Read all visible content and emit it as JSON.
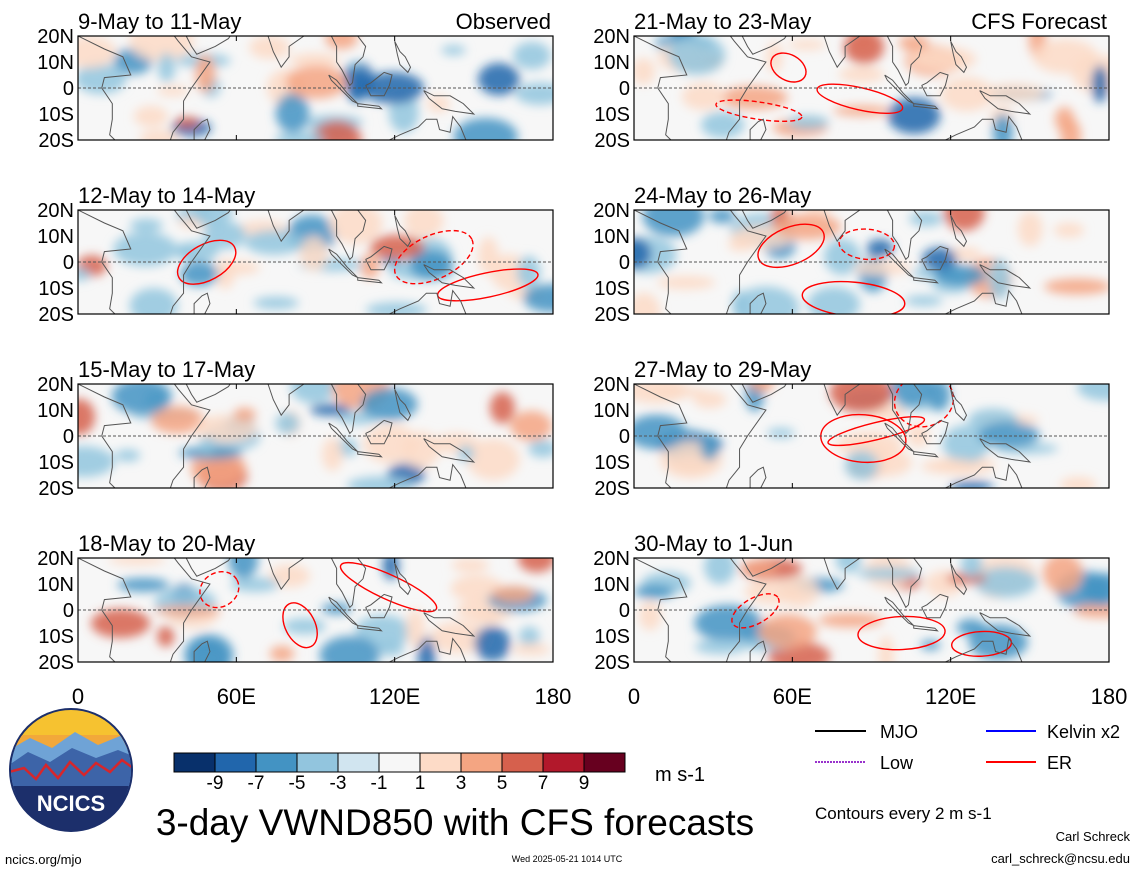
{
  "figure": {
    "title": "3-day VWND850 with CFS forecasts",
    "observed_label": "Observed",
    "forecast_label": "CFS Forecast",
    "units": "m s-1",
    "contour_note": "Contours every 2 m s-1",
    "site": "ncics.org/mjo",
    "timestamp": "Wed 2025-05-21 1014 UTC",
    "author": "Carl Schreck",
    "email": "carl_schreck@ncsu.edu",
    "logo_text": "NCICS"
  },
  "colorbar": {
    "ticks": [
      "-9",
      "-7",
      "-5",
      "-3",
      "-1",
      "1",
      "3",
      "5",
      "7",
      "9"
    ],
    "colors": [
      "#08306b",
      "#2166ac",
      "#4393c3",
      "#92c5de",
      "#d1e5f0",
      "#f7f7f7",
      "#fddbc7",
      "#f4a582",
      "#d6604d",
      "#b2182b",
      "#67001f"
    ]
  },
  "legend": [
    {
      "label": "MJO",
      "color": "#000000"
    },
    {
      "label": "Kelvin x2",
      "color": "#0000ff"
    },
    {
      "label": "Low",
      "color": "#9932cc"
    },
    {
      "label": "ER",
      "color": "#ff0000"
    }
  ],
  "chart_data": {
    "type": "heatmap",
    "variable": "850-hPa meridional wind anomaly (3-day mean)",
    "units": "m s-1",
    "x_ticks": [
      "0",
      "60E",
      "120E",
      "180"
    ],
    "xlim": [
      0,
      180
    ],
    "y_ticks": [
      "20N",
      "10N",
      "0",
      "10S",
      "20S"
    ],
    "ylim": [
      -20,
      20
    ],
    "panels": [
      {
        "title": "9-May to 11-May",
        "column": "Observed",
        "row": 0
      },
      {
        "title": "12-May to 14-May",
        "column": "Observed",
        "row": 1
      },
      {
        "title": "15-May to 17-May",
        "column": "Observed",
        "row": 2
      },
      {
        "title": "18-May to 20-May",
        "column": "Observed",
        "row": 3
      },
      {
        "title": "21-May to 23-May",
        "column": "CFS Forecast",
        "row": 0
      },
      {
        "title": "24-May to 26-May",
        "column": "CFS Forecast",
        "row": 1
      },
      {
        "title": "27-May to 29-May",
        "column": "CFS Forecast",
        "row": 2
      },
      {
        "title": "30-May to 1-Jun",
        "column": "CFS Forecast",
        "row": 3
      }
    ]
  }
}
